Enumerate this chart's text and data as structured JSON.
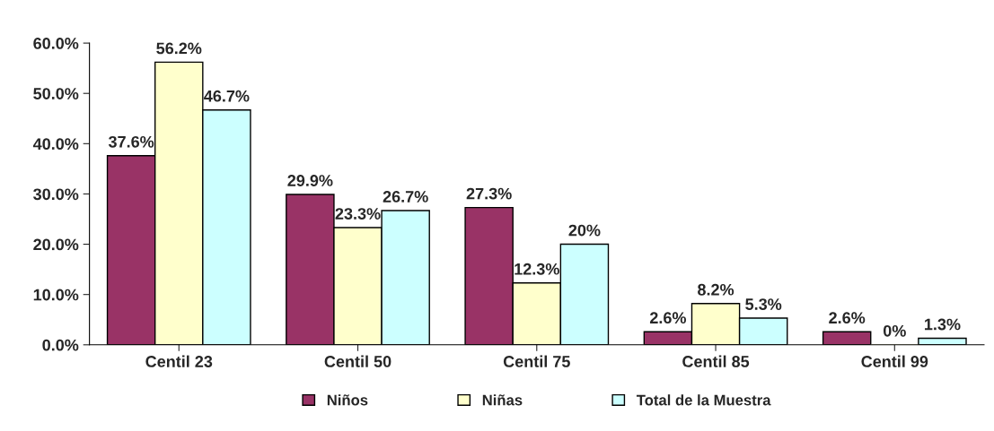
{
  "chart_data": {
    "type": "bar",
    "categories": [
      "Centil 23",
      "Centil 50",
      "Centil 75",
      "Centil 85",
      "Centil 99"
    ],
    "series": [
      {
        "name": "Niños",
        "color": "#993366",
        "values": [
          37.6,
          29.9,
          27.3,
          2.6,
          2.6
        ],
        "value_labels": [
          "37.6%",
          "29.9%",
          "27.3%",
          "2.6%",
          "2.6%"
        ]
      },
      {
        "name": "Niñas",
        "color": "#ffffcc",
        "values": [
          56.2,
          23.3,
          12.3,
          8.2,
          0
        ],
        "value_labels": [
          "56.2%",
          "23.3%",
          "12.3%",
          "8.2%",
          "0%"
        ]
      },
      {
        "name": "Total de la Muestra",
        "color": "#ccffff",
        "values": [
          46.7,
          26.7,
          20,
          5.3,
          1.3
        ],
        "value_labels": [
          "46.7%",
          "26.7%",
          "20%",
          "5.3%",
          "1.3%"
        ]
      }
    ],
    "ylim": [
      0,
      60
    ],
    "yticks": [
      {
        "value": 0,
        "label": "0.0%"
      },
      {
        "value": 10,
        "label": "10.0%"
      },
      {
        "value": 20,
        "label": "20.0%"
      },
      {
        "value": 30,
        "label": "30.0%"
      },
      {
        "value": 40,
        "label": "40.0%"
      },
      {
        "value": 50,
        "label": "50.0%"
      },
      {
        "value": 60,
        "label": "60.0%"
      }
    ],
    "grid": false,
    "legend": "bottom"
  }
}
